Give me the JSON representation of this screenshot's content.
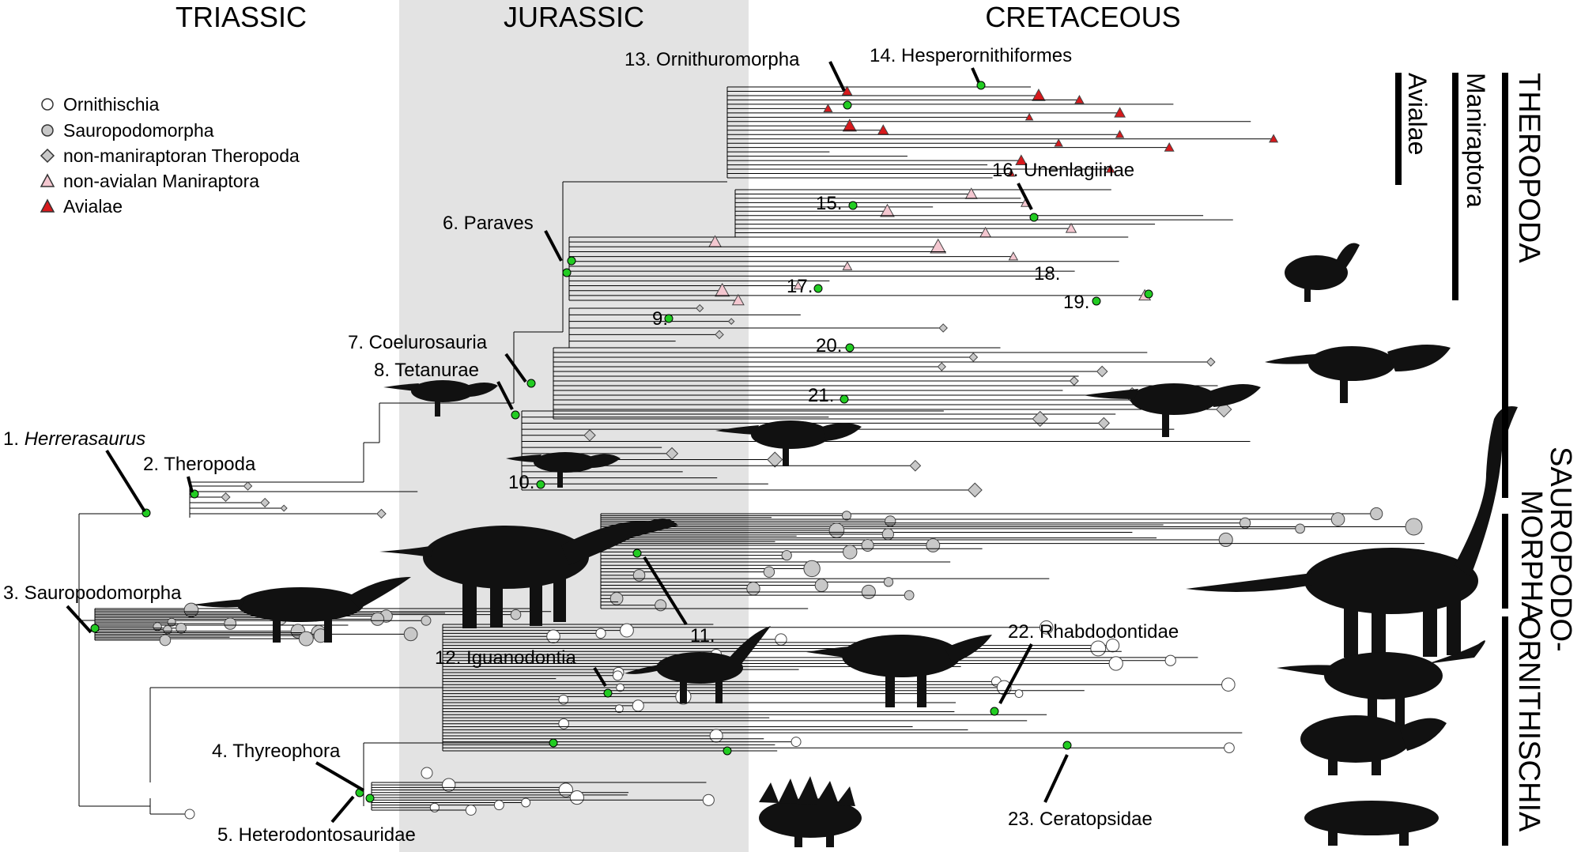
{
  "periods": [
    "TRIASSIC",
    "JURASSIC",
    "CRETACEOUS"
  ],
  "legend": [
    {
      "label": "Ornithischia",
      "marker": "circle-white",
      "color": "#ffffff"
    },
    {
      "label": "Sauropodomorpha",
      "marker": "circle-grey",
      "color": "#c8c8c8"
    },
    {
      "label": "non-maniraptoran Theropoda",
      "marker": "diamond-grey",
      "color": "#c8c8c8"
    },
    {
      "label": "non-avialan Maniraptora",
      "marker": "triangle-pink",
      "color": "#f4c7d0"
    },
    {
      "label": "Avialae",
      "marker": "triangle-red",
      "color": "#d7191c"
    }
  ],
  "node_color": "#22cc22",
  "jurassic_band_color": "#e3e3e3",
  "clade_labels": {
    "n1_num": "1.",
    "n1_name": "Herrerasaurus",
    "n2": "2. Theropoda",
    "n3": "3. Sauropodomorpha",
    "n4": "4. Thyreophora",
    "n5": "5. Heterodontosauridae",
    "n6": "6. Paraves",
    "n7": "7. Coelurosauria",
    "n8": "8. Tetanurae",
    "n9": "9.",
    "n10": "10.",
    "n11": "11.",
    "n12": "12. Iguanodontia",
    "n13": "13. Ornithuromorpha",
    "n14": "14. Hesperornithiformes",
    "n15": "15.",
    "n16": "16. Unenlagiinae",
    "n17": "17.",
    "n18": "18.",
    "n19": "19.",
    "n20": "20.",
    "n21": "21.",
    "n22": "22. Rhabdodontidae",
    "n23": "23. Ceratopsidae"
  },
  "group_bars": {
    "avialae": "Avialae",
    "maniraptora": "Maniraptora",
    "theropoda": "THEROPODA",
    "sauropodomorpha_1": "SAUROPODO-",
    "sauropodomorpha_2": "MORPHA",
    "ornithischia": "ORNITHISCHIA"
  }
}
